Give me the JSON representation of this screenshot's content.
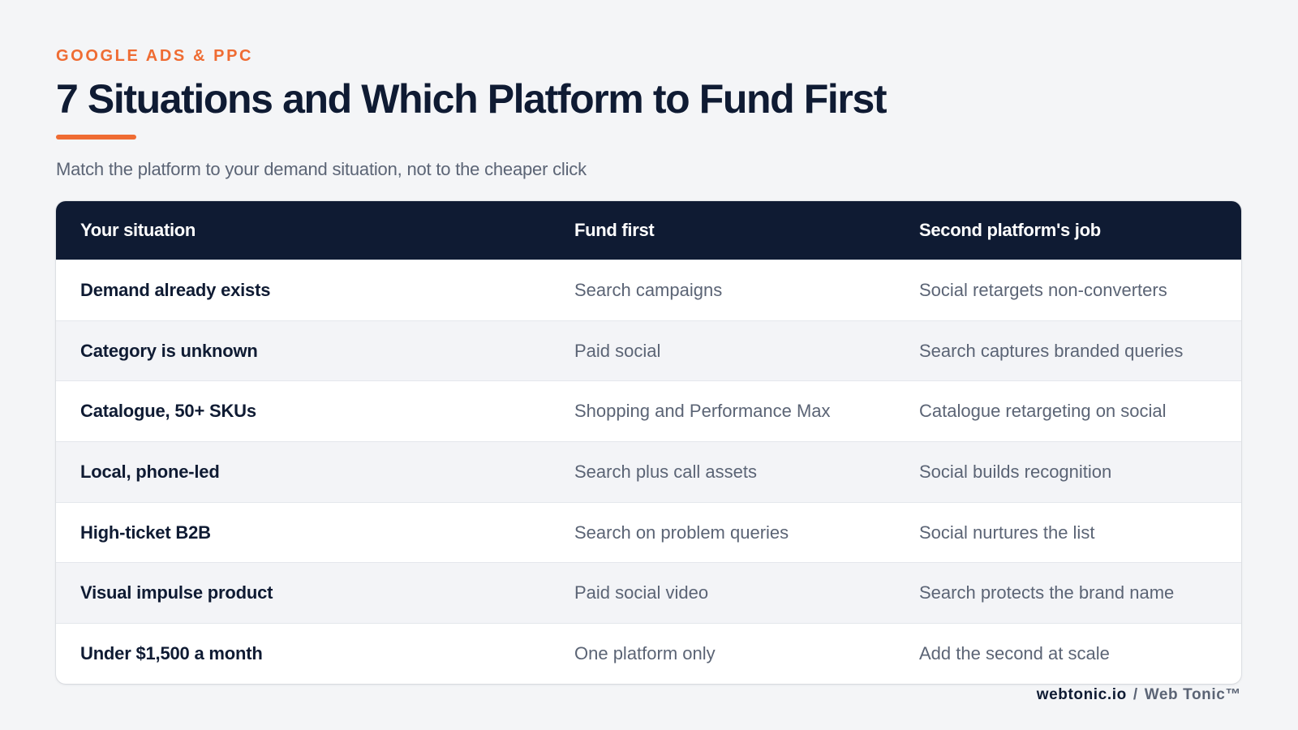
{
  "header": {
    "eyebrow": "GOOGLE ADS & PPC",
    "title": "7 Situations and Which Platform to Fund First",
    "subtitle": "Match the platform to your demand situation, not to the cheaper click"
  },
  "table": {
    "columns": [
      "Your situation",
      "Fund first",
      "Second platform's job"
    ],
    "rows": [
      [
        "Demand already exists",
        "Search campaigns",
        "Social retargets non-converters"
      ],
      [
        "Category is unknown",
        "Paid social",
        "Search captures branded queries"
      ],
      [
        "Catalogue, 50+ SKUs",
        "Shopping and Performance Max",
        "Catalogue retargeting on social"
      ],
      [
        "Local, phone-led",
        "Search plus call assets",
        "Social builds recognition"
      ],
      [
        "High-ticket B2B",
        "Search on problem queries",
        "Social nurtures the list"
      ],
      [
        "Visual impulse product",
        "Paid social video",
        "Search protects the brand name"
      ],
      [
        "Under $1,500 a month",
        "One platform only",
        "Add the second at scale"
      ]
    ]
  },
  "footer": {
    "domain": "webtonic.io",
    "separator": "/",
    "brand": "Web Tonic™"
  },
  "colors": {
    "accent": "#ef6c33",
    "navy": "#0f1b33",
    "muted": "#5b6475",
    "background": "#f4f5f7",
    "row_alt": "#f3f4f7"
  }
}
